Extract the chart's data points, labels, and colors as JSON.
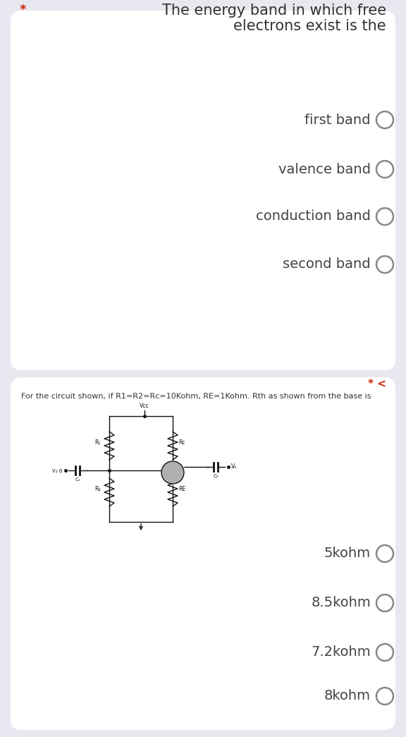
{
  "bg_color": "#e8e8f0",
  "card_color": "#ffffff",
  "q1_question_line1": "The energy band in which free",
  "q1_question_line2": "electrons exist is the",
  "q1_star": "*",
  "q1_options": [
    "first band",
    "valence band",
    "conduction band",
    "second band"
  ],
  "q2_question": "For the circuit shown, if R1=R2=Rc=10Kohm, RE=1Kohm. Rth as shown from the base is",
  "q2_star": "* <",
  "q2_options": [
    "5kohm",
    "8.5kohm",
    "7.2kohm",
    "8kohm"
  ],
  "star_color": "#cc2200",
  "text_color": "#333333",
  "option_text_color": "#444444",
  "radio_edge_color": "#888888",
  "title_fontsize": 15,
  "option_fontsize": 14,
  "q2_label_fontsize": 8,
  "circuit_color": "#111111"
}
